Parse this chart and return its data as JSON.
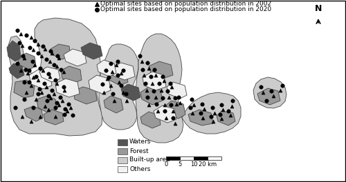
{
  "legend_items": [
    {
      "label": "Waters",
      "color": "#555555"
    },
    {
      "label": "Forest",
      "color": "#999999"
    },
    {
      "label": "Built-up area",
      "color": "#cccccc"
    },
    {
      "label": "Others",
      "color": "#f2f2f2"
    }
  ],
  "marker1_label": "Optimal sites based on population distribution in 2002",
  "marker2_label": "Optimal sites based on population distribution in 2020",
  "scale_ticks": [
    "0",
    "5",
    "10",
    "20 km"
  ],
  "north_label": "N",
  "bg_color": "#ffffff",
  "outer_bg": "#f0f0f0",
  "dark_gray": "#555555",
  "med_gray": "#999999",
  "light_gray": "#cccccc",
  "very_light": "#f0f0f0",
  "legend_fontsize": 6.5,
  "marker_fontsize": 6.5
}
